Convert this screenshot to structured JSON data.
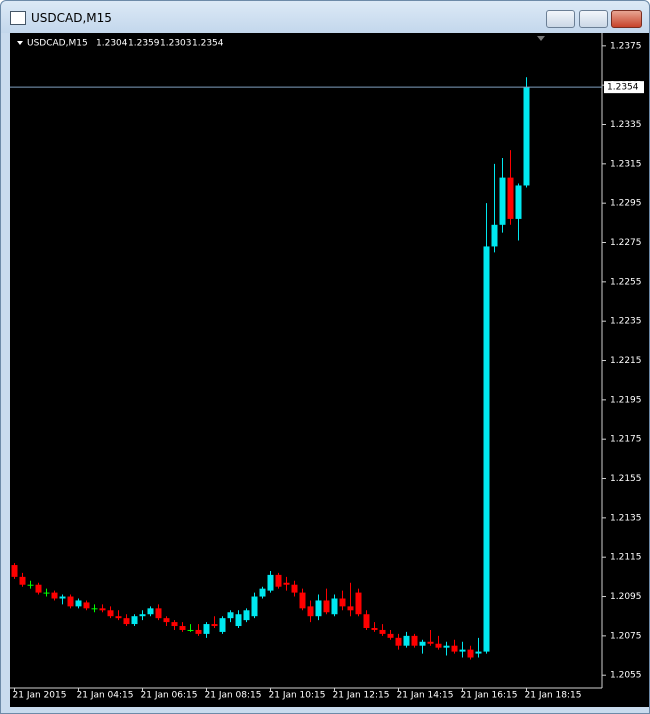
{
  "window_title": "USDCAD,M15",
  "chart_data": {
    "type": "candlestick",
    "title": "USDCAD,M15",
    "categories": [
      "21 Jan 2015",
      null,
      null,
      null,
      null,
      null,
      null,
      null,
      "21 Jan 04:15",
      null,
      null,
      null,
      null,
      null,
      null,
      null,
      "21 Jan 06:15",
      null,
      null,
      null,
      null,
      null,
      null,
      null,
      "21 Jan 08:15",
      null,
      null,
      null,
      null,
      null,
      null,
      null,
      "21 Jan 10:15",
      null,
      null,
      null,
      null,
      null,
      null,
      null,
      "21 Jan 12:15",
      null,
      null,
      null,
      null,
      null,
      null,
      null,
      "21 Jan 14:15",
      null,
      null,
      null,
      null,
      null,
      null,
      null,
      "21 Jan 16:15",
      null,
      null,
      null,
      null,
      null,
      null,
      null,
      "21 Jan 18:15"
    ],
    "open": [
      1.2111,
      1.2105,
      1.2101,
      1.2101,
      1.2097,
      1.2097,
      1.2094,
      1.2095,
      1.209,
      1.2092,
      1.2089,
      1.2089,
      1.2088,
      1.2085,
      1.2084,
      1.2081,
      1.2085,
      1.2086,
      1.2089,
      1.2084,
      1.2082,
      1.208,
      1.2078,
      1.2078,
      1.2076,
      1.2081,
      1.2077,
      1.2084,
      1.208,
      1.2083,
      1.2085,
      1.2095,
      1.2098,
      1.2106,
      1.2102,
      1.2101,
      1.2097,
      1.209,
      1.2085,
      1.2093,
      1.2086,
      1.2094,
      1.209,
      1.2097,
      1.2086,
      1.2079,
      1.2078,
      1.2076,
      1.2074,
      1.207,
      1.2075,
      1.207,
      1.2072,
      1.2071,
      1.2069,
      1.207,
      1.2067,
      1.2068,
      1.2066,
      1.2067,
      1.2273,
      1.2284,
      1.2308,
      1.2287,
      1.2304
    ],
    "high": [
      1.2112,
      1.2107,
      1.2103,
      1.2102,
      1.2099,
      1.2098,
      1.2096,
      1.2096,
      1.2094,
      1.2093,
      1.2091,
      1.2091,
      1.209,
      1.2088,
      1.2086,
      1.2086,
      1.2088,
      1.209,
      1.2091,
      1.2085,
      1.2083,
      1.2082,
      1.2081,
      1.2081,
      1.2082,
      1.2085,
      1.2085,
      1.2088,
      1.2088,
      1.2089,
      1.2097,
      1.21,
      1.2108,
      1.2107,
      1.2105,
      1.2103,
      1.2099,
      1.2093,
      1.2096,
      1.2099,
      1.2096,
      1.2098,
      1.2102,
      1.2099,
      1.2088,
      1.2082,
      1.2081,
      1.2078,
      1.2076,
      1.2077,
      1.2076,
      1.2073,
      1.2078,
      1.2075,
      1.2072,
      1.2073,
      1.2072,
      1.207,
      1.2074,
      1.2295,
      1.2315,
      1.2318,
      1.2322,
      1.2305,
      1.2359
    ],
    "low": [
      1.2104,
      1.21,
      1.2099,
      1.2096,
      1.2095,
      1.2093,
      1.2091,
      1.2089,
      1.2089,
      1.2088,
      1.2087,
      1.2087,
      1.2084,
      1.2083,
      1.208,
      1.208,
      1.2083,
      1.2085,
      1.2083,
      1.208,
      1.2078,
      1.2077,
      1.2077,
      1.2075,
      1.2074,
      1.2079,
      1.2076,
      1.2082,
      1.2079,
      1.2082,
      1.2084,
      1.2094,
      1.2097,
      1.2099,
      1.2098,
      1.2095,
      1.2088,
      1.2082,
      1.2083,
      1.2086,
      1.2085,
      1.2088,
      1.2085,
      1.2085,
      1.2078,
      1.2077,
      1.2075,
      1.2073,
      1.2068,
      1.2069,
      1.2069,
      1.2066,
      1.207,
      1.2068,
      1.2065,
      1.2066,
      1.2064,
      1.2063,
      1.2064,
      1.2066,
      1.227,
      1.228,
      1.2284,
      1.2276,
      1.2303
    ],
    "close": [
      1.2105,
      1.2101,
      1.2101,
      1.2097,
      1.2097,
      1.2094,
      1.2095,
      1.209,
      1.2093,
      1.2089,
      1.2089,
      1.2088,
      1.2085,
      1.2084,
      1.2081,
      1.2085,
      1.2086,
      1.2089,
      1.2084,
      1.2082,
      1.208,
      1.2078,
      1.2078,
      1.2076,
      1.2081,
      1.208,
      1.2084,
      1.2087,
      1.2086,
      1.2088,
      1.2095,
      1.2099,
      1.2106,
      1.21,
      1.2101,
      1.2097,
      1.2089,
      1.2085,
      1.2093,
      1.2087,
      1.2094,
      1.209,
      1.2088,
      1.2086,
      1.2079,
      1.2078,
      1.2076,
      1.2074,
      1.207,
      1.2075,
      1.207,
      1.2072,
      1.2071,
      1.2069,
      1.207,
      1.2067,
      1.2068,
      1.2064,
      1.2067,
      1.2273,
      1.2284,
      1.2308,
      1.2287,
      1.2304,
      1.2354
    ],
    "up_color": "#00e8f0",
    "down_color": "#ff0000",
    "doji_color": "#00ff00",
    "last_price": 1.2354,
    "ylim": [
      1.2049,
      1.238
    ],
    "yticks": [
      1.2055,
      1.2075,
      1.2095,
      1.2115,
      1.2135,
      1.2155,
      1.2175,
      1.2195,
      1.2215,
      1.2235,
      1.2255,
      1.2275,
      1.2295,
      1.2315,
      1.2335,
      1.2355,
      1.2375
    ],
    "grid": false
  }
}
